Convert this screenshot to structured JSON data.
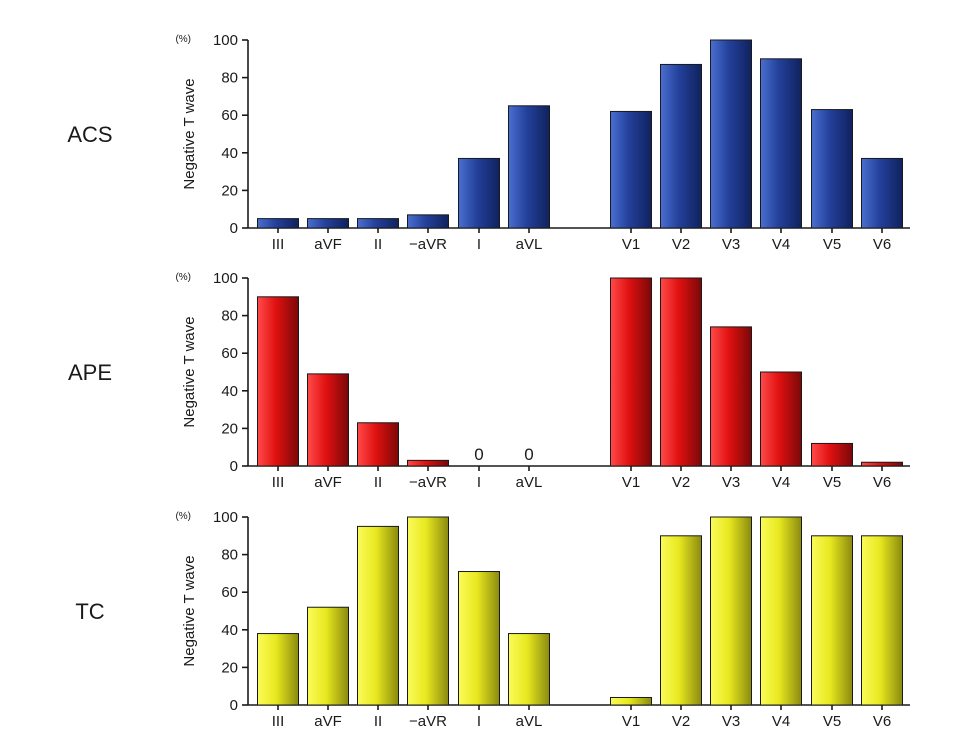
{
  "chart_data": [
    {
      "type": "bar",
      "group_label": "ACS",
      "unit": "(%)",
      "ylabel": "Negative T wave",
      "categories": [
        "III",
        "aVF",
        "II",
        "−aVR",
        "I",
        "aVL",
        "V1",
        "V2",
        "V3",
        "V4",
        "V5",
        "V6"
      ],
      "values": [
        5,
        5,
        5,
        7,
        37,
        65,
        62,
        87,
        100,
        90,
        63,
        37
      ],
      "ylim": [
        0,
        100
      ],
      "yticks": [
        "0",
        "20",
        "40",
        "60",
        "80",
        "100"
      ],
      "colors": {
        "light": "#4a6fd0",
        "mid": "#23409a",
        "dark": "#10225e"
      }
    },
    {
      "type": "bar",
      "group_label": "APE",
      "unit": "(%)",
      "ylabel": "Negative T wave",
      "categories": [
        "III",
        "aVF",
        "II",
        "−aVR",
        "I",
        "aVL",
        "V1",
        "V2",
        "V3",
        "V4",
        "V5",
        "V6"
      ],
      "values": [
        90,
        49,
        23,
        3,
        0,
        0,
        100,
        100,
        74,
        50,
        12,
        2
      ],
      "ylim": [
        0,
        100
      ],
      "yticks": [
        "0",
        "20",
        "40",
        "60",
        "80",
        "100"
      ],
      "zero_value_labels": [
        "0",
        "0"
      ],
      "colors": {
        "light": "#ff4a4a",
        "mid": "#e01010",
        "dark": "#7a0808"
      }
    },
    {
      "type": "bar",
      "group_label": "TC",
      "unit": "(%)",
      "ylabel": "Negative T wave",
      "categories": [
        "III",
        "aVF",
        "II",
        "−aVR",
        "I",
        "aVL",
        "V1",
        "V2",
        "V3",
        "V4",
        "V5",
        "V6"
      ],
      "values": [
        38,
        52,
        95,
        100,
        71,
        38,
        4,
        90,
        100,
        100,
        90,
        90
      ],
      "ylim": [
        0,
        100
      ],
      "yticks": [
        "0",
        "20",
        "40",
        "60",
        "80",
        "100"
      ],
      "colors": {
        "light": "#fbfb5a",
        "mid": "#e8e820",
        "dark": "#8a8a10"
      }
    }
  ]
}
